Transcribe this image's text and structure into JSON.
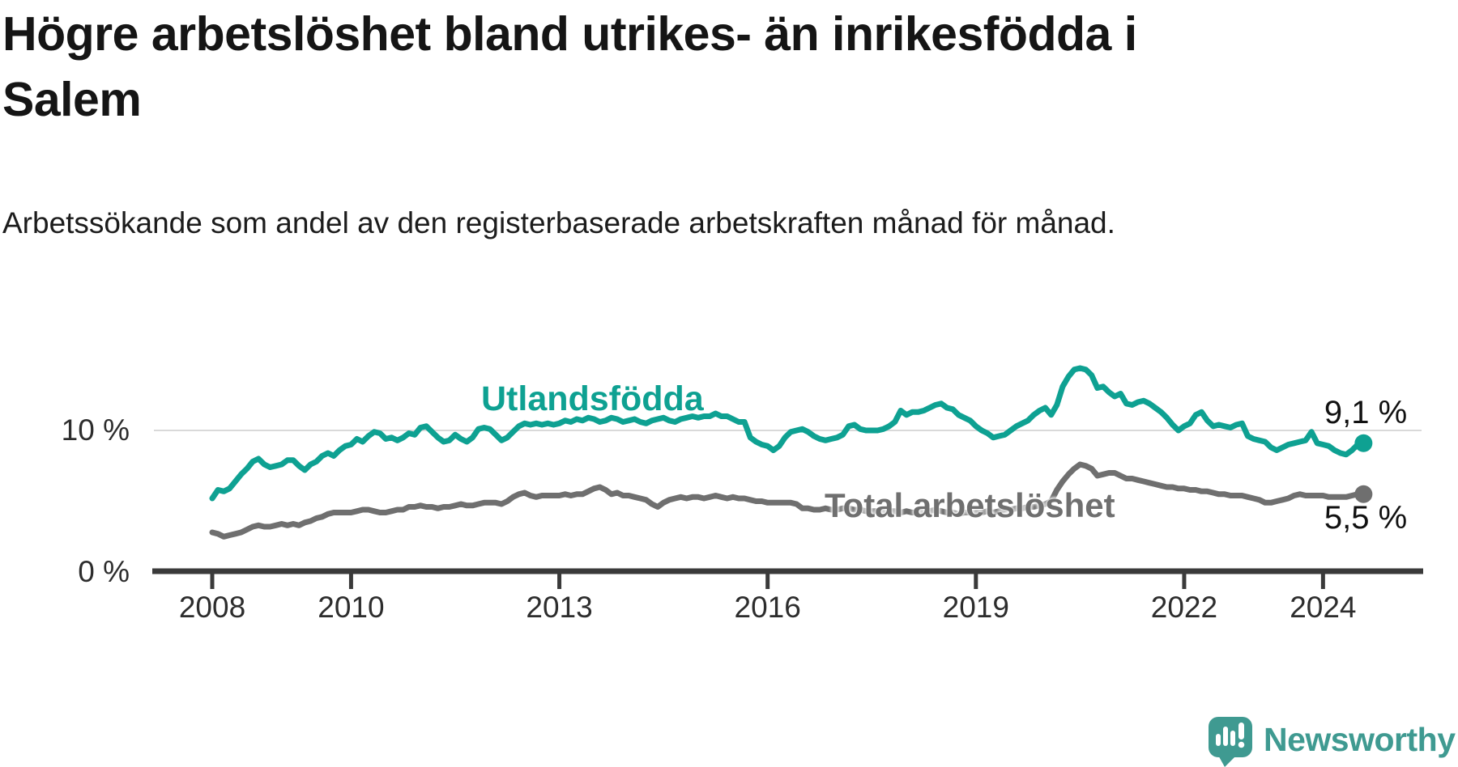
{
  "title": {
    "lines": [
      "Högre arbetslöshet bland utrikes- än inrikesfödda i",
      "Salem"
    ]
  },
  "subtitle": "Arbetssökande som andel av den registerbaserade arbetskraften månad för månad.",
  "branding": {
    "name": "Newsworthy",
    "color": "#3f9a91"
  },
  "colors": {
    "axis": "#3a3a3a",
    "gridline": "#d9d9d9",
    "tick_text": "#2d2d2d",
    "value_label_text": "#111111"
  },
  "chart_data": {
    "type": "line",
    "title": "Högre arbetslöshet bland utrikes- än inrikesfödda i Salem",
    "xlabel": "",
    "ylabel": "Arbetssökande som andel av den registerbaserade arbetskraften",
    "x_start_year": 2008,
    "x_frequency": "monthly",
    "x_end": "2024-08",
    "x_axis_ticks": [
      2008,
      2010,
      2013,
      2016,
      2019,
      2022,
      2024
    ],
    "y_axis": {
      "ticks": [
        {
          "value": 0,
          "label": "0 %"
        },
        {
          "value": 10,
          "label": "10 %"
        }
      ],
      "ylim": [
        0,
        15.5
      ],
      "grid": "horizontal-10-only"
    },
    "legend_position": "inline-labels",
    "series": [
      {
        "name": "Utlandsfödda",
        "color": "#0ea192",
        "end_label": "9,1 %",
        "end_value": 9.1,
        "values": [
          5.2,
          5.8,
          5.7,
          5.9,
          6.4,
          6.9,
          7.3,
          7.8,
          8.0,
          7.6,
          7.4,
          7.5,
          7.6,
          7.9,
          7.9,
          7.5,
          7.2,
          7.6,
          7.8,
          8.2,
          8.4,
          8.2,
          8.6,
          8.9,
          9.0,
          9.4,
          9.2,
          9.6,
          9.9,
          9.8,
          9.4,
          9.5,
          9.3,
          9.5,
          9.8,
          9.7,
          10.2,
          10.3,
          9.9,
          9.5,
          9.2,
          9.3,
          9.7,
          9.4,
          9.2,
          9.5,
          10.1,
          10.2,
          10.1,
          9.7,
          9.3,
          9.5,
          9.9,
          10.3,
          10.5,
          10.4,
          10.5,
          10.4,
          10.5,
          10.4,
          10.5,
          10.7,
          10.6,
          10.8,
          10.7,
          10.9,
          10.8,
          10.6,
          10.7,
          10.9,
          10.8,
          10.6,
          10.7,
          10.8,
          10.6,
          10.5,
          10.7,
          10.8,
          10.9,
          10.7,
          10.6,
          10.8,
          10.9,
          11.0,
          10.9,
          11.0,
          11.0,
          11.2,
          11.0,
          11.0,
          10.8,
          10.6,
          10.6,
          9.5,
          9.2,
          9.0,
          8.9,
          8.6,
          8.9,
          9.5,
          9.9,
          10.0,
          10.1,
          9.9,
          9.6,
          9.4,
          9.3,
          9.4,
          9.5,
          9.7,
          10.3,
          10.4,
          10.1,
          10.0,
          10.0,
          10.0,
          10.1,
          10.3,
          10.6,
          11.4,
          11.1,
          11.3,
          11.3,
          11.4,
          11.6,
          11.8,
          11.9,
          11.6,
          11.5,
          11.1,
          10.9,
          10.7,
          10.3,
          10.0,
          9.8,
          9.5,
          9.6,
          9.7,
          10.0,
          10.3,
          10.5,
          10.7,
          11.1,
          11.4,
          11.6,
          11.1,
          11.8,
          13.1,
          13.8,
          14.3,
          14.4,
          14.3,
          13.9,
          13.0,
          13.1,
          12.7,
          12.4,
          12.6,
          11.9,
          11.8,
          12.0,
          12.1,
          11.9,
          11.6,
          11.3,
          10.9,
          10.4,
          10.0,
          10.3,
          10.5,
          11.1,
          11.3,
          10.7,
          10.3,
          10.4,
          10.3,
          10.2,
          10.4,
          10.5,
          9.6,
          9.4,
          9.3,
          9.2,
          8.8,
          8.6,
          8.8,
          9.0,
          9.1,
          9.2,
          9.3,
          9.9,
          9.1,
          9.0,
          8.9,
          8.6,
          8.4,
          8.3,
          8.6,
          9.0,
          9.1
        ]
      },
      {
        "name": "Total arbetslöshet",
        "color": "#6f6f6f",
        "end_label": "5,5 %",
        "end_value": 5.5,
        "values": [
          2.8,
          2.7,
          2.5,
          2.6,
          2.7,
          2.8,
          3.0,
          3.2,
          3.3,
          3.2,
          3.2,
          3.3,
          3.4,
          3.3,
          3.4,
          3.3,
          3.5,
          3.6,
          3.8,
          3.9,
          4.1,
          4.2,
          4.2,
          4.2,
          4.2,
          4.3,
          4.4,
          4.4,
          4.3,
          4.2,
          4.2,
          4.3,
          4.4,
          4.4,
          4.6,
          4.6,
          4.7,
          4.6,
          4.6,
          4.5,
          4.6,
          4.6,
          4.7,
          4.8,
          4.7,
          4.7,
          4.8,
          4.9,
          4.9,
          4.9,
          4.8,
          5.0,
          5.3,
          5.5,
          5.6,
          5.4,
          5.3,
          5.4,
          5.4,
          5.4,
          5.4,
          5.5,
          5.4,
          5.5,
          5.5,
          5.7,
          5.9,
          6.0,
          5.8,
          5.5,
          5.6,
          5.4,
          5.4,
          5.3,
          5.2,
          5.1,
          4.8,
          4.6,
          4.9,
          5.1,
          5.2,
          5.3,
          5.2,
          5.3,
          5.3,
          5.2,
          5.3,
          5.4,
          5.3,
          5.2,
          5.3,
          5.2,
          5.2,
          5.1,
          5.0,
          5.0,
          4.9,
          4.9,
          4.9,
          4.9,
          4.9,
          4.8,
          4.5,
          4.5,
          4.4,
          4.4,
          4.5,
          4.4,
          4.4,
          4.5,
          4.5,
          4.4,
          4.4,
          4.3,
          4.3,
          4.3,
          4.4,
          4.3,
          4.3,
          4.2,
          4.3,
          4.2,
          4.2,
          4.3,
          4.3,
          4.4,
          4.3,
          4.2,
          4.2,
          4.1,
          4.2,
          4.2,
          4.2,
          4.2,
          4.3,
          4.2,
          4.3,
          4.4,
          4.4,
          4.5,
          4.5,
          4.6,
          4.6,
          4.7,
          4.8,
          5.0,
          5.8,
          6.4,
          6.9,
          7.3,
          7.6,
          7.5,
          7.3,
          6.8,
          6.9,
          7.0,
          7.0,
          6.8,
          6.6,
          6.6,
          6.5,
          6.4,
          6.3,
          6.2,
          6.1,
          6.0,
          6.0,
          5.9,
          5.9,
          5.8,
          5.8,
          5.7,
          5.7,
          5.6,
          5.5,
          5.5,
          5.4,
          5.4,
          5.4,
          5.3,
          5.2,
          5.1,
          4.9,
          4.9,
          5.0,
          5.1,
          5.2,
          5.4,
          5.5,
          5.4,
          5.4,
          5.4,
          5.4,
          5.3,
          5.3,
          5.3,
          5.3,
          5.4,
          5.5,
          5.5
        ]
      }
    ]
  }
}
